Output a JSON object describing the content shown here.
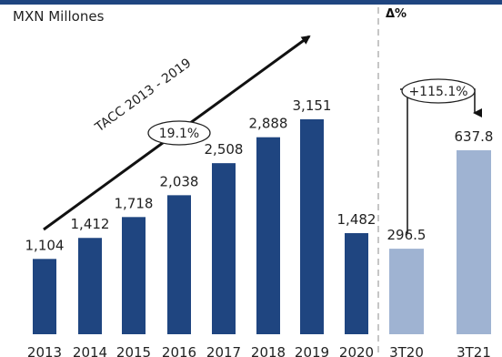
{
  "header": {
    "unit_label": "MXN Millones",
    "delta_label": "Δ%"
  },
  "colors": {
    "accent": "#1f4580",
    "light": "#9fb3d2",
    "divider": "#a8a8a8",
    "arrow": "#111111"
  },
  "chart_data": [
    {
      "type": "bar",
      "categories": [
        "2013",
        "2014",
        "2015",
        "2016",
        "2017",
        "2018",
        "2019",
        "2020"
      ],
      "values": [
        1104,
        1412,
        1718,
        2038,
        2508,
        2888,
        3151,
        1482
      ],
      "value_labels": [
        "1,104",
        "1,412",
        "1,718",
        "2,038",
        "2,508",
        "2,888",
        "3,151",
        "1,482"
      ],
      "title": "",
      "xlabel": "",
      "ylabel": "MXN Millones",
      "annotation": {
        "text": "TACC 2013 - 2019",
        "value": "19.1%"
      },
      "grid": false
    },
    {
      "type": "bar",
      "categories": [
        "3T20",
        "3T21"
      ],
      "values": [
        296.5,
        637.8
      ],
      "value_labels": [
        "296.5",
        "637.8"
      ],
      "title": "",
      "xlabel": "",
      "ylabel": "",
      "annotation": {
        "text": "Δ%",
        "value": "+115.1%"
      },
      "grid": false
    }
  ]
}
